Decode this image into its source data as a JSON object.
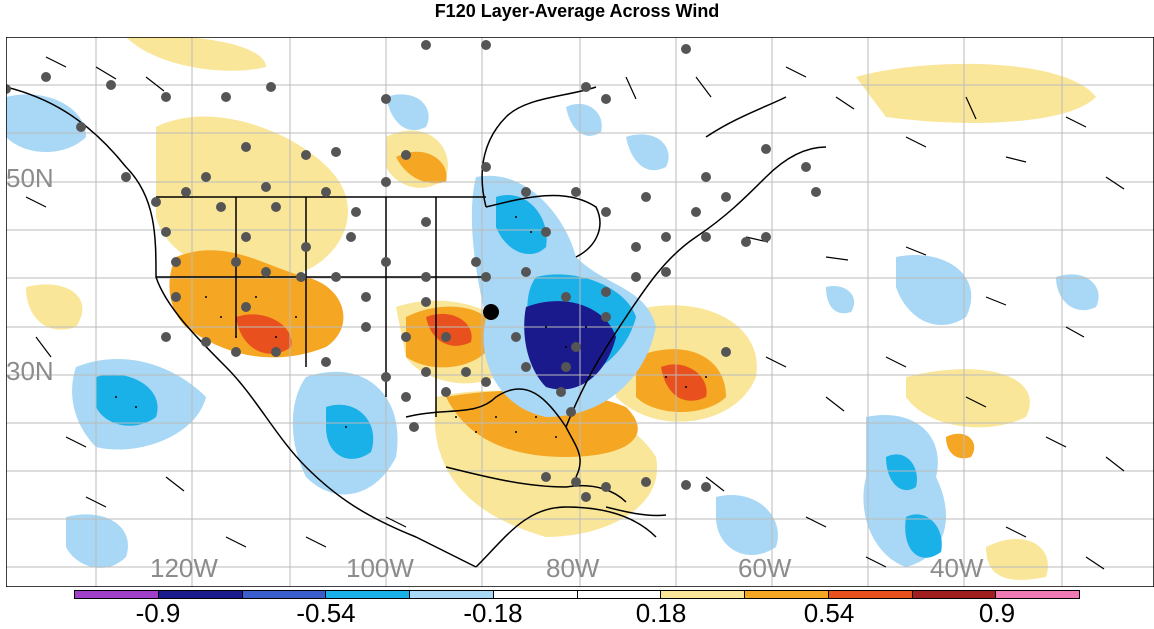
{
  "title": "F120 Layer-Average Across Wind",
  "lat_labels": [
    "50N",
    "30N"
  ],
  "lon_labels": [
    "120W",
    "100W",
    "80W",
    "60W",
    "40W"
  ],
  "colorbar": {
    "colors": [
      "#a040c8",
      "#1a1a8c",
      "#3a5fcd",
      "#1ab0e8",
      "#a8d8f5",
      "#ffffff",
      "#ffffff",
      "#fae699",
      "#f5a623",
      "#e8501e",
      "#a01e1e",
      "#f07ab4"
    ],
    "labels": [
      "-0.9",
      "-0.54",
      "-0.18",
      "0.18",
      "0.54",
      "0.9"
    ]
  }
}
